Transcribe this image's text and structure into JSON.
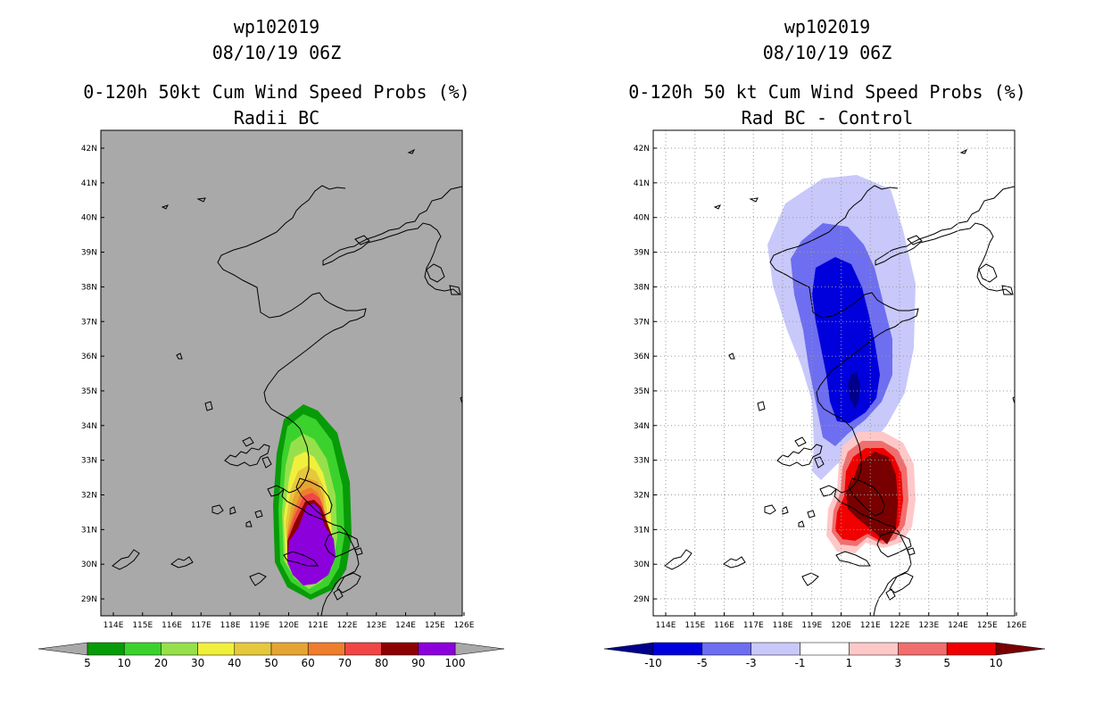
{
  "left_panel": {
    "storm_id": "wp102019",
    "datetime": "08/10/19 06Z",
    "title": "0-120h 50kt Cum Wind Speed Probs (%)",
    "subtitle": "Radii BC",
    "background_color": "#a9a9a9",
    "colorbar_labels": [
      "5",
      "10",
      "20",
      "30",
      "40",
      "50",
      "60",
      "70",
      "80",
      "90",
      "100"
    ],
    "colorbar_colors": [
      "#089b08",
      "#3cd22d",
      "#96e14b",
      "#f0f03c",
      "#e6c83c",
      "#e6a532",
      "#ee7d2d",
      "#f04646",
      "#8c0000",
      "#8c00dc"
    ]
  },
  "right_panel": {
    "storm_id": "wp102019",
    "datetime": "08/10/19 06Z",
    "title": "0-120h 50 kt Cum Wind Speed Probs (%)",
    "subtitle": "Rad BC - Control",
    "background_color": "#ffffff",
    "colorbar_labels": [
      "-10",
      "-5",
      "-3",
      "-1",
      "1",
      "3",
      "5",
      "10"
    ],
    "colorbar_colors": [
      "#0000dc",
      "#6e6ef0",
      "#c8c8fa",
      "#ffffff",
      "#ffc8c8",
      "#f06e6e",
      "#f00000"
    ]
  },
  "map": {
    "lat_labels": [
      "42N",
      "41N",
      "40N",
      "39N",
      "38N",
      "37N",
      "36N",
      "35N",
      "34N",
      "33N",
      "32N",
      "31N",
      "30N",
      "29N"
    ],
    "lon_labels": [
      "114E",
      "115E",
      "116E",
      "117E",
      "118E",
      "119E",
      "120E",
      "121E",
      "122E",
      "123E",
      "124E",
      "125E",
      "126E"
    ]
  },
  "colors": {
    "colorbar_left_low_arrow": "#a9a9a9",
    "colorbar_left_high_arrow": "#a9a9a9",
    "colorbar_right_low_arrow": "#00008c",
    "colorbar_right_high_arrow": "#780000"
  }
}
